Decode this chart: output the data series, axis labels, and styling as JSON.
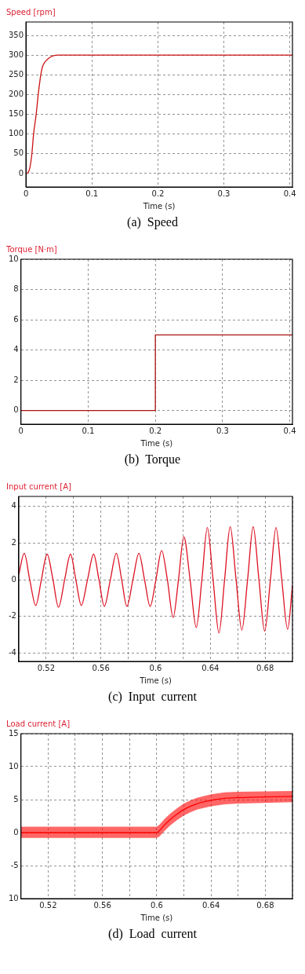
{
  "chart_data": [
    {
      "type": "line",
      "title": "Speed [rpm]",
      "xlabel": "Time (s)",
      "annotations": [
        "(a)  Speed"
      ],
      "xlim": [
        0,
        0.404
      ],
      "xticks": [
        0,
        0.1,
        0.2,
        0.3,
        0.4
      ],
      "ylim": [
        -34,
        384
      ],
      "yticks": [
        0,
        50,
        100,
        150,
        200,
        250,
        300,
        350
      ],
      "grid": true,
      "legend": false,
      "marker": "none",
      "line_style": "solid",
      "series": [
        {
          "color": "#cc1111",
          "x": [
            0,
            0.003,
            0.006,
            0.009,
            0.0116,
            0.0155,
            0.0186,
            0.0225,
            0.025,
            0.029,
            0.033,
            0.038,
            0.043,
            0.048,
            0.404
          ],
          "values": [
            0,
            2,
            15,
            50,
            100,
            150,
            200,
            250,
            270,
            283,
            290,
            296,
            299,
            300,
            300
          ]
        }
      ]
    },
    {
      "type": "line",
      "title": "Torque [N·m]",
      "xlabel": "Time (s)",
      "annotations": [
        "(b)  Torque"
      ],
      "xlim": [
        0,
        0.404
      ],
      "xticks": [
        0,
        0.1,
        0.2,
        0.3,
        0.4
      ],
      "ylim": [
        -0.9,
        10
      ],
      "yticks": [
        0,
        2,
        4,
        6,
        8,
        10
      ],
      "grid": true,
      "legend": false,
      "marker": "none",
      "line_style": "solid",
      "series": [
        {
          "color": "#aa1111",
          "x": [
            0,
            0.2,
            0.2,
            0.404
          ],
          "values": [
            0,
            0,
            5,
            5
          ]
        }
      ]
    },
    {
      "type": "line",
      "title": "Input current [A]",
      "xlabel": "Time (s)",
      "annotations": [
        "(c)  Input  current"
      ],
      "xlim": [
        0.5,
        0.7
      ],
      "xticks": [
        {
          "value": 0.5,
          "label": null
        },
        0.52,
        {
          "value": 0.54,
          "label": null
        },
        0.56,
        {
          "value": 0.58,
          "label": null
        },
        0.6,
        {
          "value": 0.62,
          "label": null
        },
        0.64,
        {
          "value": 0.66,
          "label": null
        },
        0.68,
        {
          "value": 0.7,
          "label": null
        }
      ],
      "ylim": [
        -4.45,
        4.55
      ],
      "yticks": [
        -4,
        -2,
        0,
        2,
        4
      ],
      "grid": true,
      "legend": false,
      "marker": "none",
      "line_style": "solid",
      "series": [
        {
          "color": "#dd1122",
          "x": [
            0.5,
            0.504,
            0.508,
            0.5124,
            0.5165,
            0.5207,
            0.525,
            0.529,
            0.5335,
            0.5378,
            0.5417,
            0.5457,
            0.5502,
            0.5547,
            0.5586,
            0.5625,
            0.5669,
            0.5713,
            0.5752,
            0.579,
            0.5834,
            0.5878,
            0.5919,
            0.596,
            0.6002,
            0.6044,
            0.6086,
            0.6128,
            0.6167,
            0.6206,
            0.6252,
            0.6297,
            0.6338,
            0.6378,
            0.642,
            0.6463,
            0.6504,
            0.6545,
            0.6588,
            0.663,
            0.6672,
            0.6713,
            0.6755,
            0.6797,
            0.6839,
            0.688,
            0.6922,
            0.6965,
            0.7
          ],
          "values": [
            0.3,
            1.45,
            0,
            -1.4,
            0,
            1.4,
            0,
            -1.5,
            0,
            1.4,
            0,
            -1.4,
            0,
            1.4,
            0,
            -1.45,
            0,
            1.45,
            0,
            -1.45,
            0,
            1.45,
            0,
            -1.45,
            0,
            1.6,
            0,
            -2.05,
            0,
            2.35,
            0,
            -2.6,
            0,
            2.85,
            0,
            -2.9,
            0,
            2.9,
            0,
            -2.75,
            0,
            2.9,
            0,
            -2.8,
            0,
            2.85,
            0,
            -2.7,
            -0.3
          ]
        }
      ]
    },
    {
      "type": "line",
      "title": "Load current [A]",
      "xlabel": "Time (s)",
      "annotations": [
        "(d)  Load  current"
      ],
      "xlim": [
        0.5,
        0.7
      ],
      "xticks": [
        {
          "value": 0.5,
          "label": null
        },
        0.52,
        {
          "value": 0.54,
          "label": null
        },
        0.56,
        {
          "value": 0.58,
          "label": null
        },
        0.6,
        {
          "value": 0.62,
          "label": null
        },
        0.64,
        {
          "value": 0.66,
          "label": null
        },
        0.68,
        {
          "value": 0.7,
          "label": null
        }
      ],
      "ylim": [
        -10,
        15
      ],
      "yticks": [
        {
          "value": -10,
          "label": "10"
        },
        -5,
        0,
        5,
        10,
        15
      ],
      "grid": true,
      "legend": false,
      "marker": "none",
      "line_style": "solid",
      "series": [
        {
          "color": "#ff0000",
          "x": [
            0.5,
            0.6,
            0.602,
            0.606,
            0.61,
            0.615,
            0.62,
            0.625,
            0.63,
            0.64,
            0.65,
            0.66,
            0.7
          ],
          "values": [
            0,
            0,
            0.3,
            1.2,
            2,
            2.8,
            3.5,
            4,
            4.4,
            4.9,
            5.2,
            5.3,
            5.5
          ],
          "lower": [
            -0.8,
            -0.8,
            -0.6,
            0.3,
            1.1,
            1.9,
            2.6,
            3.1,
            3.5,
            4,
            4.3,
            4.4,
            4.6
          ],
          "upper": [
            0.9,
            0.9,
            1.2,
            2.1,
            2.9,
            3.7,
            4.4,
            4.9,
            5.3,
            5.8,
            6.1,
            6.2,
            6.3
          ]
        }
      ]
    }
  ]
}
